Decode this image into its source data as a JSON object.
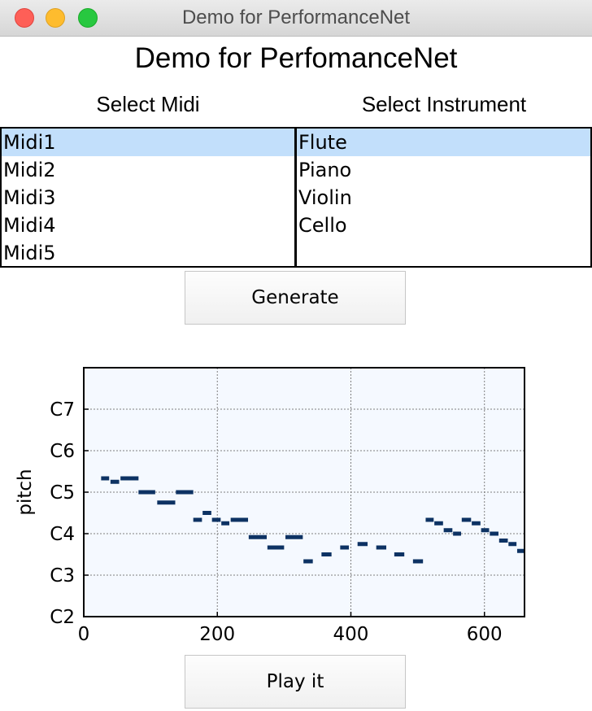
{
  "window": {
    "title": "Demo for PerformanceNet"
  },
  "app": {
    "title": "Demo for PerfomanceNet"
  },
  "midi_list": {
    "label": "Select Midi",
    "items": [
      "Midi1",
      "Midi2",
      "Midi3",
      "Midi4",
      "Midi5"
    ],
    "selected": 0
  },
  "instrument_list": {
    "label": "Select Instrument",
    "items": [
      "Flute",
      "Piano",
      "Violin",
      "Cello"
    ],
    "selected": 0
  },
  "buttons": {
    "generate": "Generate",
    "play": "Play it"
  },
  "colors": {
    "selection": "#c2dffb",
    "note": "#0d3263",
    "plot_bg": "#f5f9ff"
  },
  "chart_data": {
    "type": "scatter",
    "ylabel": "pitch",
    "xlim": [
      0,
      660
    ],
    "ylim": [
      24,
      96
    ],
    "xticks": [
      0,
      200,
      400,
      600
    ],
    "yticks": [
      {
        "value": 24,
        "label": "C2"
      },
      {
        "value": 36,
        "label": "C3"
      },
      {
        "value": 48,
        "label": "C4"
      },
      {
        "value": 60,
        "label": "C5"
      },
      {
        "value": 72,
        "label": "C6"
      },
      {
        "value": 84,
        "label": "C7"
      }
    ],
    "grid": true,
    "notes": [
      {
        "start": 26,
        "end": 38,
        "pitch": 64
      },
      {
        "start": 40,
        "end": 53,
        "pitch": 63
      },
      {
        "start": 55,
        "end": 82,
        "pitch": 64
      },
      {
        "start": 82,
        "end": 107,
        "pitch": 60
      },
      {
        "start": 110,
        "end": 137,
        "pitch": 57
      },
      {
        "start": 138,
        "end": 164,
        "pitch": 60
      },
      {
        "start": 164,
        "end": 177,
        "pitch": 52
      },
      {
        "start": 178,
        "end": 191,
        "pitch": 54
      },
      {
        "start": 192,
        "end": 205,
        "pitch": 52
      },
      {
        "start": 206,
        "end": 218,
        "pitch": 51
      },
      {
        "start": 220,
        "end": 246,
        "pitch": 52
      },
      {
        "start": 247,
        "end": 274,
        "pitch": 47
      },
      {
        "start": 275,
        "end": 300,
        "pitch": 44
      },
      {
        "start": 302,
        "end": 328,
        "pitch": 47
      },
      {
        "start": 329,
        "end": 343,
        "pitch": 40
      },
      {
        "start": 356,
        "end": 371,
        "pitch": 42
      },
      {
        "start": 384,
        "end": 397,
        "pitch": 44
      },
      {
        "start": 410,
        "end": 425,
        "pitch": 45
      },
      {
        "start": 438,
        "end": 453,
        "pitch": 44
      },
      {
        "start": 465,
        "end": 480,
        "pitch": 42
      },
      {
        "start": 493,
        "end": 508,
        "pitch": 40
      },
      {
        "start": 512,
        "end": 524,
        "pitch": 52
      },
      {
        "start": 525,
        "end": 538,
        "pitch": 51
      },
      {
        "start": 539,
        "end": 552,
        "pitch": 49
      },
      {
        "start": 553,
        "end": 565,
        "pitch": 48
      },
      {
        "start": 566,
        "end": 580,
        "pitch": 52
      },
      {
        "start": 581,
        "end": 594,
        "pitch": 51
      },
      {
        "start": 595,
        "end": 607,
        "pitch": 49
      },
      {
        "start": 608,
        "end": 621,
        "pitch": 48
      },
      {
        "start": 622,
        "end": 635,
        "pitch": 46
      },
      {
        "start": 636,
        "end": 648,
        "pitch": 45
      },
      {
        "start": 649,
        "end": 660,
        "pitch": 43
      }
    ]
  }
}
